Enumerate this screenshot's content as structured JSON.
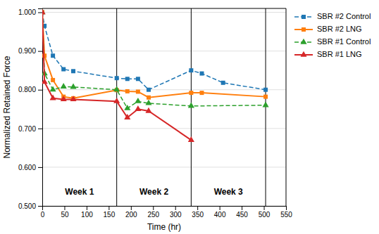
{
  "chart_data": {
    "type": "line",
    "xlabel": "Time (hr)",
    "ylabel": "Normalized Retained Force",
    "xlim": [
      0,
      550
    ],
    "ylim": [
      0.5,
      1.01
    ],
    "xticks": [
      0,
      50,
      100,
      150,
      200,
      250,
      300,
      350,
      400,
      450,
      500,
      550
    ],
    "yticks": [
      {
        "value": 0.5,
        "label": "0.500"
      },
      {
        "value": 0.6,
        "label": "0.600"
      },
      {
        "value": 0.7,
        "label": "0.700"
      },
      {
        "value": 0.8,
        "label": "0.800"
      },
      {
        "value": 0.9,
        "label": "0.900"
      },
      {
        "value": 1.0,
        "label": "1.000"
      }
    ],
    "grid": true,
    "legend": "right",
    "series": [
      {
        "name": "SBR #2 Control",
        "marker": "square",
        "line_style": "dashed",
        "x": [
          0,
          5,
          24,
          48,
          70,
          168,
          192,
          216,
          240,
          336,
          360,
          408,
          504
        ],
        "values": [
          1.0,
          0.965,
          0.888,
          0.853,
          0.848,
          0.83,
          0.828,
          0.828,
          0.8,
          0.85,
          0.842,
          0.818,
          0.8
        ]
      },
      {
        "name": "SBR #2 LNG",
        "marker": "square",
        "line_style": "solid",
        "x": [
          0,
          5,
          24,
          48,
          70,
          168,
          192,
          216,
          240,
          336,
          360,
          504
        ],
        "values": [
          1.0,
          0.888,
          0.825,
          0.782,
          0.778,
          0.799,
          0.796,
          0.795,
          0.78,
          0.792,
          0.792,
          0.782
        ]
      },
      {
        "name": "SBR #1 Control",
        "marker": "triangle",
        "line_style": "dashed",
        "x": [
          0,
          5,
          24,
          48,
          70,
          168,
          192,
          216,
          240,
          336,
          504
        ],
        "values": [
          1.0,
          0.842,
          0.8,
          0.808,
          0.807,
          0.8,
          0.752,
          0.77,
          0.765,
          0.758,
          0.76
        ]
      },
      {
        "name": "SBR #1 LNG",
        "marker": "triangle",
        "line_style": "solid",
        "x": [
          0,
          5,
          24,
          48,
          70,
          168,
          192,
          216,
          240,
          336
        ],
        "values": [
          1.0,
          0.82,
          0.778,
          0.775,
          0.775,
          0.77,
          0.728,
          0.75,
          0.745,
          0.67
        ]
      }
    ],
    "vlines": [
      {
        "x": 168,
        "color": "black"
      },
      {
        "x": 336,
        "color": "black"
      },
      {
        "x": 504,
        "color": "black"
      }
    ],
    "annotations": [
      {
        "text": "Week 1",
        "x": 84,
        "y": 0.535
      },
      {
        "text": "Week 2",
        "x": 252,
        "y": 0.535
      },
      {
        "text": "Week 3",
        "x": 420,
        "y": 0.535
      }
    ]
  }
}
